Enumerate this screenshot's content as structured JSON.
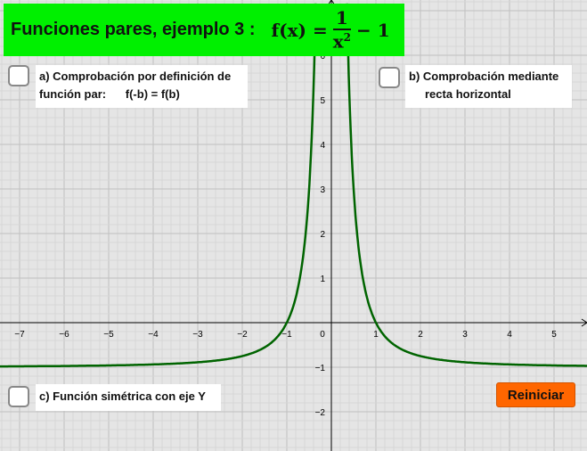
{
  "title": {
    "text": "Funciones pares,  ejemplo 3 :",
    "formula_lhs": "f(x) =",
    "formula_num": "1",
    "formula_den": "x",
    "formula_exp": "2",
    "formula_tail": "− 1"
  },
  "checkboxes": [
    {
      "label_line1": "a) Comprobación por definición de",
      "label_line2": "función par:      f(-b) = f(b)",
      "checked": false
    },
    {
      "label_line1": "b) Comprobación mediante",
      "label_line2": "recta horizontal",
      "checked": false
    },
    {
      "label_line1": "c) Función simétrica con eje Y",
      "checked": false
    }
  ],
  "reset_button": "Reiniciar",
  "graph": {
    "function": "f(x) = 1/x^2 - 1",
    "curve_color": "#006400",
    "x_range": [
      -7.44,
      5.74
    ],
    "y_range": [
      -2.88,
      7.24
    ],
    "x_ticks": [
      "−7",
      "−6",
      "−5",
      "−4",
      "−3",
      "−2",
      "−1",
      "0",
      "1",
      "2",
      "3",
      "4",
      "5"
    ],
    "y_ticks": [
      "−2",
      "−1",
      "1",
      "2",
      "3",
      "4",
      "5",
      "6"
    ],
    "grid": true
  }
}
